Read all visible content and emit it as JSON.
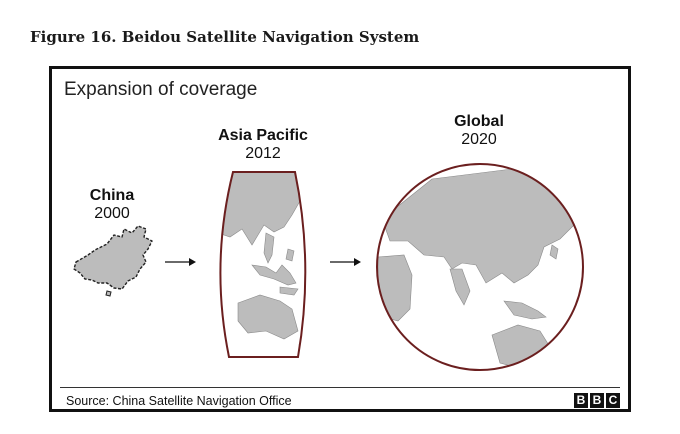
{
  "figure_caption": "Figure 16. Beidou Satellite Navigation System",
  "diagram": {
    "heading": "Expansion of coverage",
    "stages": [
      {
        "name": "China",
        "year": "2000"
      },
      {
        "name": "Asia Pacific",
        "year": "2012"
      },
      {
        "name": "Global",
        "year": "2020"
      }
    ],
    "source": "Source: China Satellite Navigation Office",
    "logo_letters": [
      "B",
      "B",
      "C"
    ]
  },
  "colors": {
    "land": "#bcbcbc",
    "coverage_border": "#6b1f1f",
    "frame": "#111111"
  }
}
